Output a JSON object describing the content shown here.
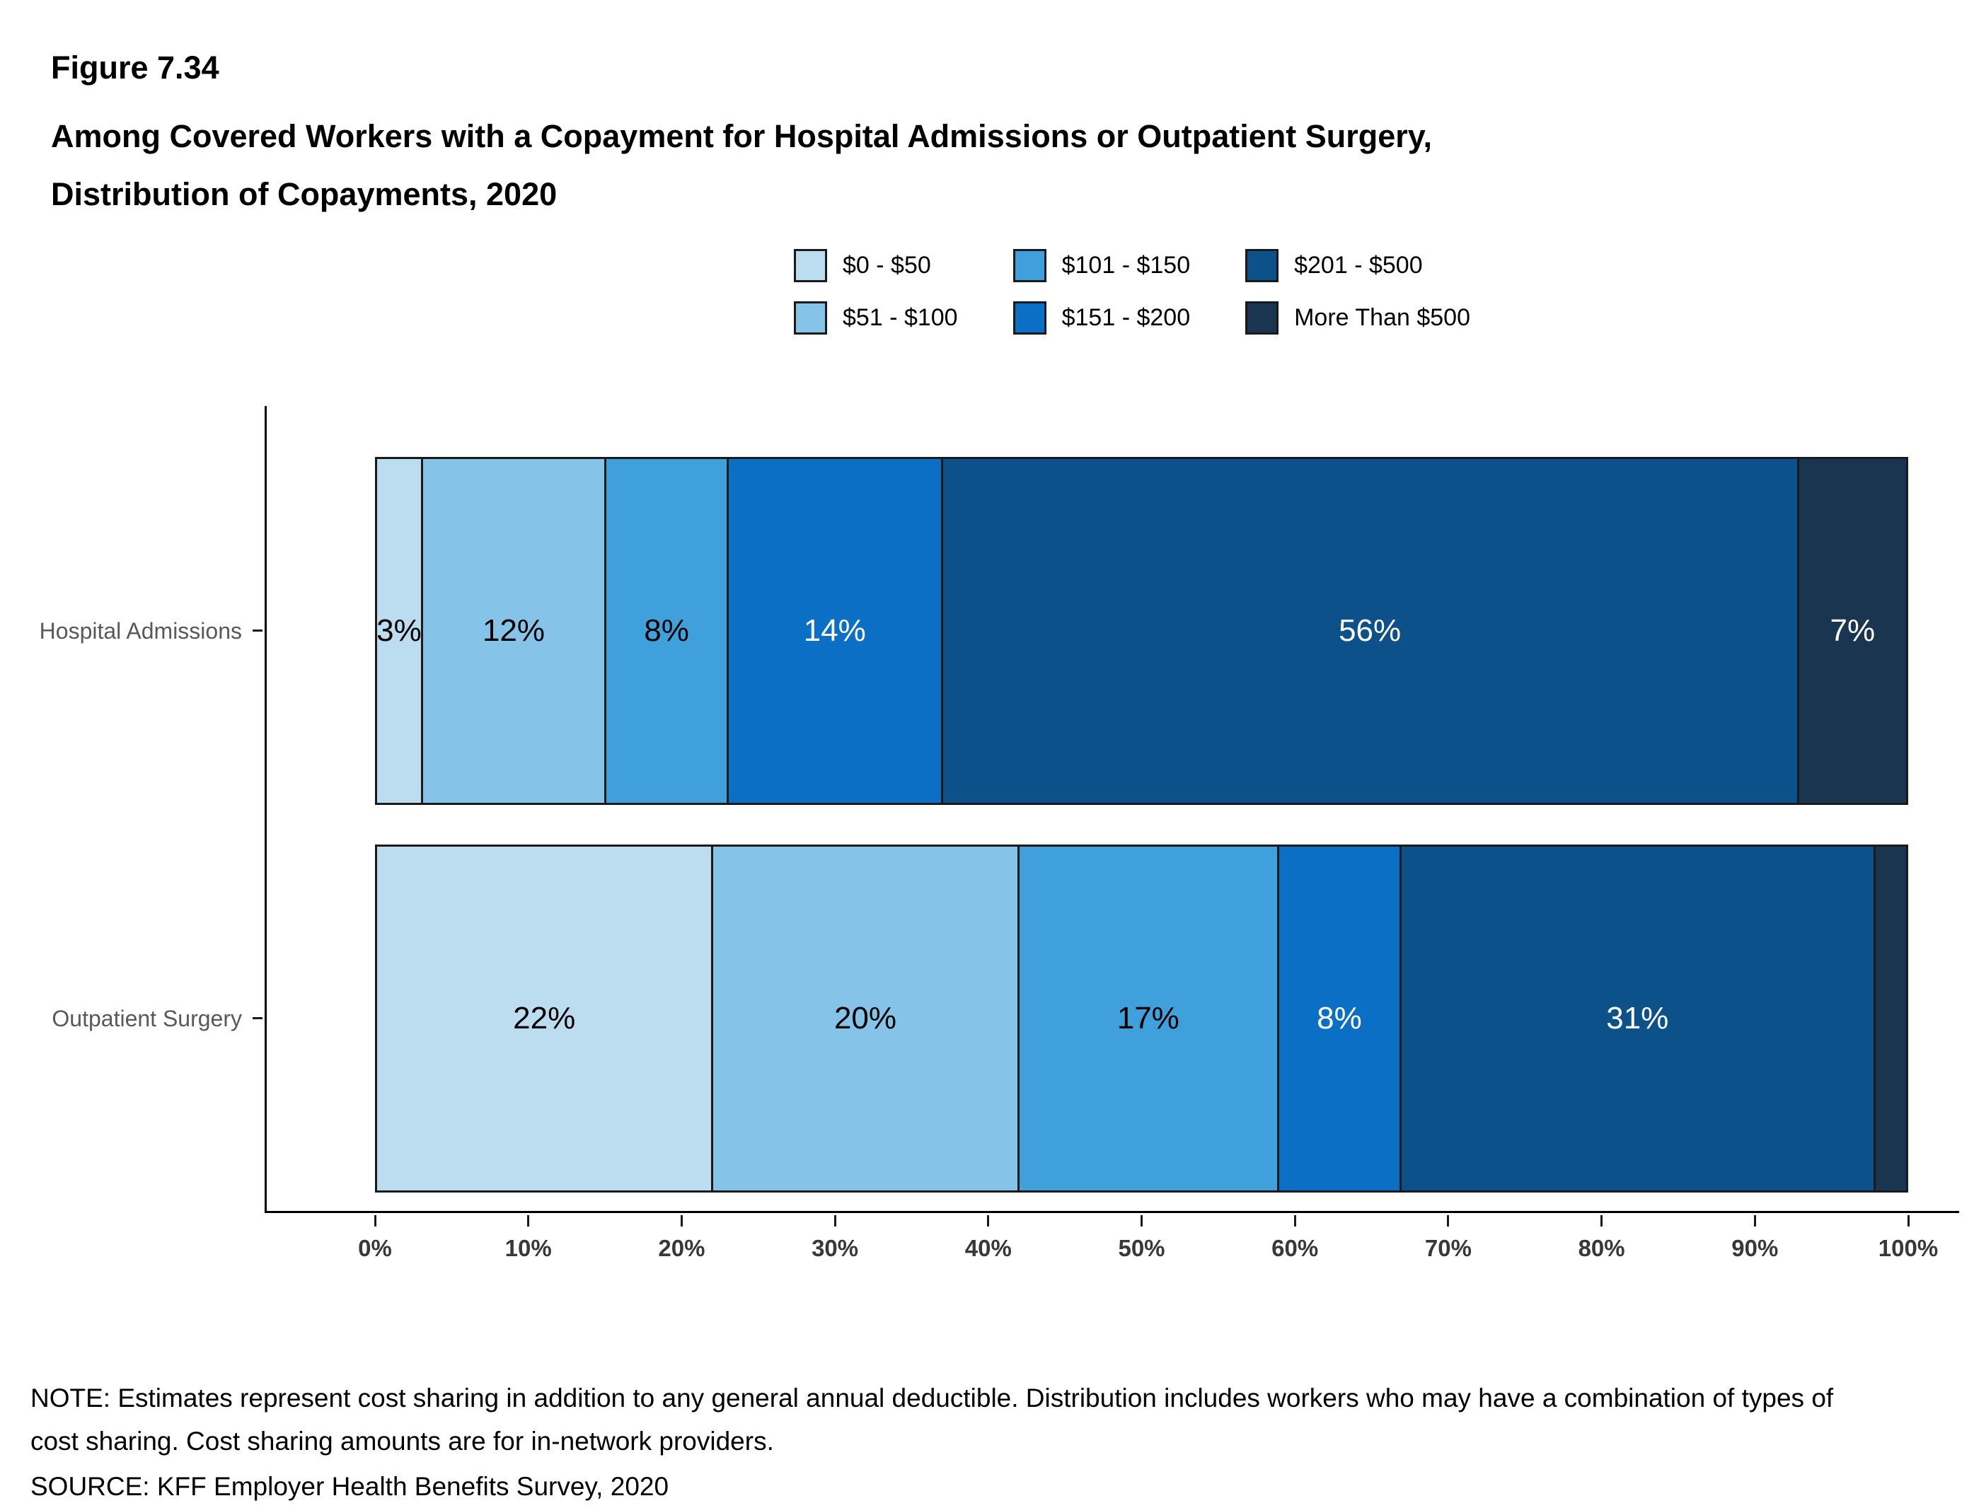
{
  "figure": {
    "number": "Figure 7.34",
    "title_lines": [
      "Among Covered Workers with a Copayment for Hospital Admissions or Outpatient Surgery,",
      "Distribution of Copayments, 2020"
    ]
  },
  "chart_data": {
    "type": "bar",
    "orientation": "horizontal",
    "stacked": true,
    "title": "Among Covered Workers with a Copayment for Hospital Admissions or Outpatient Surgery, Distribution of Copayments, 2020",
    "xlabel": "",
    "ylabel": "",
    "xlim": [
      0,
      100
    ],
    "grid": false,
    "legend_position": "top",
    "categories": [
      "Hospital Admissions",
      "Outpatient Surgery"
    ],
    "series": [
      {
        "name": "$0 - $50",
        "color": "#BCDCF0",
        "label_color": "#000000",
        "values": [
          3,
          22
        ]
      },
      {
        "name": "$51 - $100",
        "color": "#86C3E8",
        "label_color": "#000000",
        "values": [
          12,
          20
        ]
      },
      {
        "name": "$101 - $150",
        "color": "#3FA0DC",
        "label_color": "#000000",
        "values": [
          8,
          17
        ]
      },
      {
        "name": "$151 - $200",
        "color": "#0B6FC6",
        "label_color": "#FFFFFF",
        "values": [
          14,
          8
        ]
      },
      {
        "name": "$201 - $500",
        "color": "#0C5189",
        "label_color": "#FFFFFF",
        "values": [
          56,
          31
        ]
      },
      {
        "name": "More Than $500",
        "color": "#1A3550",
        "label_color": "#FFFFFF",
        "values": [
          7,
          2
        ]
      }
    ],
    "value_labels": {
      "Hospital Admissions": [
        "3%",
        "12%",
        "8%",
        "14%",
        "56%",
        "7%"
      ],
      "Outpatient Surgery": [
        "22%",
        "20%",
        "17%",
        "8%",
        "31%",
        ""
      ]
    },
    "x_ticks": [
      "0%",
      "10%",
      "20%",
      "30%",
      "40%",
      "50%",
      "60%",
      "70%",
      "80%",
      "90%",
      "100%"
    ]
  },
  "notes": {
    "note": "NOTE: Estimates represent cost sharing in addition to any general annual deductible. Distribution includes workers who may have a combination of types of cost sharing. Cost sharing amounts are for in-network providers.",
    "source": "SOURCE: KFF Employer Health Benefits Survey, 2020"
  }
}
